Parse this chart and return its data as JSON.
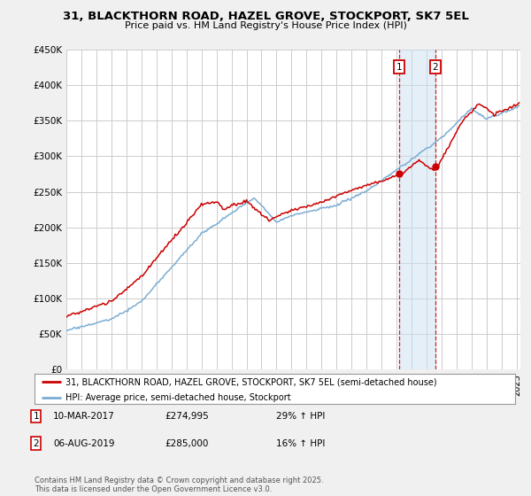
{
  "title_line1": "31, BLACKTHORN ROAD, HAZEL GROVE, STOCKPORT, SK7 5EL",
  "title_line2": "Price paid vs. HM Land Registry's House Price Index (HPI)",
  "ylabel_ticks": [
    "£0",
    "£50K",
    "£100K",
    "£150K",
    "£200K",
    "£250K",
    "£300K",
    "£350K",
    "£400K",
    "£450K"
  ],
  "ylabel_values": [
    0,
    50000,
    100000,
    150000,
    200000,
    250000,
    300000,
    350000,
    400000,
    450000
  ],
  "ylim": [
    0,
    450000
  ],
  "line1_color": "#cc0000",
  "line2_color": "#7aadd4",
  "legend_line1": "31, BLACKTHORN ROAD, HAZEL GROVE, STOCKPORT, SK7 5EL (semi-detached house)",
  "legend_line2": "HPI: Average price, semi-detached house, Stockport",
  "marker1_date": "10-MAR-2017",
  "marker1_price": 274995,
  "marker1_hpi": "29% ↑ HPI",
  "marker2_date": "06-AUG-2019",
  "marker2_price": 285000,
  "marker2_hpi": "16% ↑ HPI",
  "footer": "Contains HM Land Registry data © Crown copyright and database right 2025.\nThis data is licensed under the Open Government Licence v3.0.",
  "background_color": "#f0f0f0",
  "plot_bg_color": "#ffffff",
  "grid_color": "#cccccc",
  "shade_color": "#cce0f0"
}
